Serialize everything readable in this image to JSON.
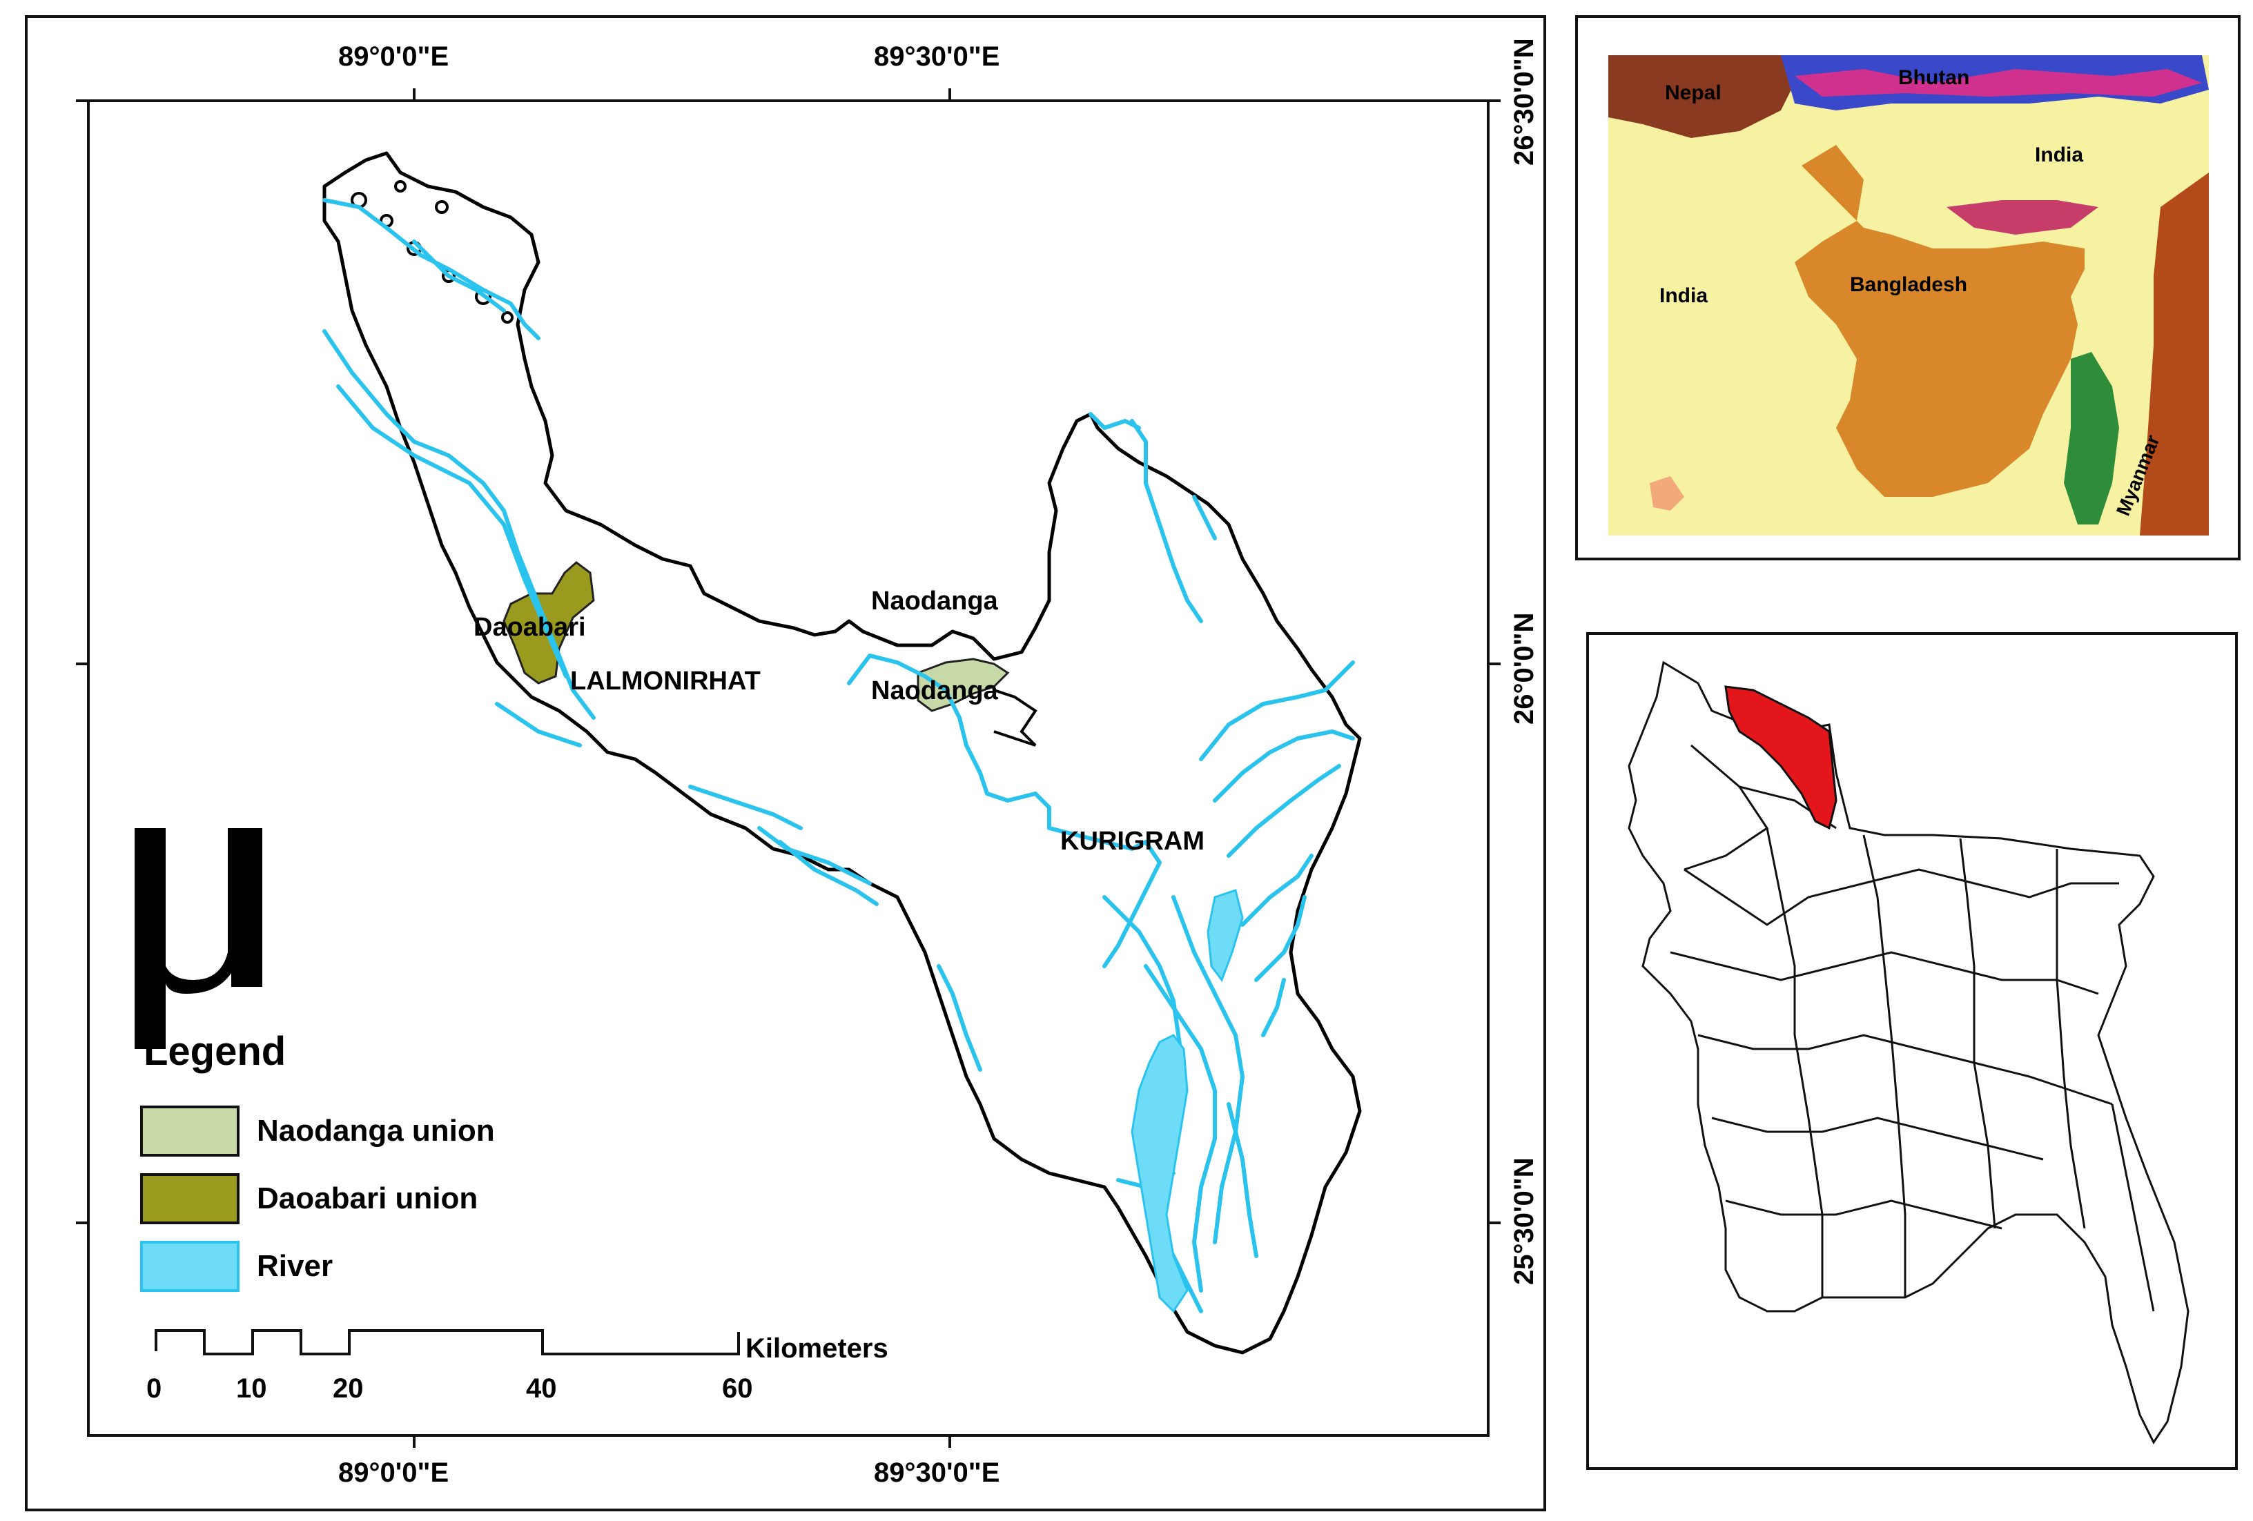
{
  "main_map": {
    "top_ticks": [
      "89°0'0\"E",
      "89°30'0\"E"
    ],
    "bottom_ticks": [
      "89°0'0\"E",
      "89°30'0\"E"
    ],
    "right_ticks": [
      "26°30'0\"N",
      "26°0'0\"N",
      "25°30'0\"N"
    ],
    "place_labels": {
      "daoabari": "Daoabari",
      "lalmonirhat": "LALMONIRHAT",
      "naodanga_top": "Naodanga",
      "naodanga_mid": "Naodanga",
      "kurigram": "KURIGRAM"
    },
    "north_arrow_symbol": "μ",
    "legend": {
      "title": "Legend",
      "items": [
        {
          "label": "Naodanga union",
          "color": "#c8d9a8"
        },
        {
          "label": "Daoabari union",
          "color": "#9a9a1e"
        },
        {
          "label": "River",
          "color": "#6fdcf7"
        }
      ]
    },
    "scale_bar": {
      "unit": "Kilometers",
      "ticks": [
        "0",
        "10",
        "20",
        "40",
        "60"
      ]
    },
    "colors": {
      "river": "#29c3ee",
      "boundary": "#000000",
      "kurigram_fill": "#ffffff"
    }
  },
  "inset_region": {
    "labels": {
      "nepal": "Nepal",
      "bhutan": "Bhutan",
      "india_ne": "India",
      "india_w": "India",
      "bangladesh": "Bangladesh",
      "myanmar": "Myanmar"
    }
  },
  "inset_bangladesh": {
    "highlight_color": "#e3161b"
  }
}
